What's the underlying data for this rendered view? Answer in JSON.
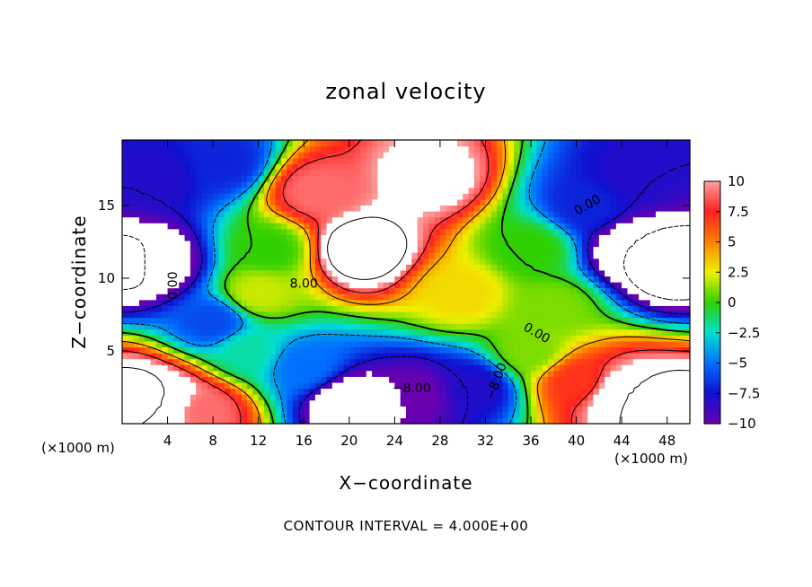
{
  "chart_data": {
    "type": "heatmap",
    "title": "zonal velocity",
    "xlabel": "X−coordinate",
    "ylabel": "Z−coordinate",
    "x_unit_label": "(×1000 m)",
    "footer": "CONTOUR INTERVAL = 4.000E+00",
    "xlim": [
      0,
      50
    ],
    "ylim": [
      0,
      19.5
    ],
    "x_ticks": [
      4,
      8,
      12,
      16,
      20,
      24,
      28,
      32,
      36,
      40,
      44,
      48
    ],
    "y_ticks": [
      5,
      10,
      15
    ],
    "colorbar": {
      "ticks": [
        10,
        7.5,
        5,
        2.5,
        0,
        -2.5,
        -5,
        -7.5,
        -10
      ],
      "tick_labels": [
        "10",
        "7.5",
        "5",
        "2.5",
        "0",
        "−2.5",
        "−5",
        "−7.5",
        "−10"
      ],
      "range": [
        -10,
        10
      ],
      "colors_high_to_low": [
        "#ffa0a0",
        "#ff2020",
        "#ff8000",
        "#f0f000",
        "#30d000",
        "#00e0d0",
        "#0070ff",
        "#1010d0",
        "#6a00b0"
      ]
    },
    "contour_interval": 4,
    "contour_labels": [
      "0.00",
      "8.00",
      "−8.00",
      "0.00",
      "−8.00",
      "0.00"
    ],
    "grid": false,
    "features": [
      {
        "x": 21,
        "z": 12,
        "u": 14
      },
      {
        "x": 27,
        "z": 17,
        "u": 11
      },
      {
        "x": 17,
        "z": 16,
        "u": 9
      },
      {
        "x": 12,
        "z": 9,
        "u": 2
      },
      {
        "x": 30,
        "z": 9,
        "u": 3
      },
      {
        "x": 36,
        "z": 12,
        "u": 0
      },
      {
        "x": 3,
        "z": 17,
        "u": -8
      },
      {
        "x": 9,
        "z": 18,
        "u": -7
      },
      {
        "x": 1,
        "z": 11,
        "u": -13
      },
      {
        "x": 3,
        "z": 11,
        "u": -11
      },
      {
        "x": 8,
        "z": 7,
        "u": -6
      },
      {
        "x": 45,
        "z": 17,
        "u": -8
      },
      {
        "x": 48,
        "z": 11,
        "u": -14
      },
      {
        "x": 45,
        "z": 12,
        "u": -12
      },
      {
        "x": 41,
        "z": 15,
        "u": -7
      },
      {
        "x": 20,
        "z": 1.5,
        "u": -12
      },
      {
        "x": 26,
        "z": 2,
        "u": -10
      },
      {
        "x": 31,
        "z": 2.5,
        "u": -8
      },
      {
        "x": 16,
        "z": 4,
        "u": -5
      },
      {
        "x": 11,
        "z": 5,
        "u": -2
      },
      {
        "x": 1,
        "z": 2,
        "u": 13
      },
      {
        "x": 4,
        "z": 1.5,
        "u": 12
      },
      {
        "x": 7,
        "z": 1,
        "u": 9
      },
      {
        "x": 44,
        "z": 2,
        "u": 12
      },
      {
        "x": 48,
        "z": 1,
        "u": 14
      },
      {
        "x": 40,
        "z": 3,
        "u": 7
      },
      {
        "x": 36,
        "z": 5,
        "u": 1
      },
      {
        "x": 13,
        "z": 12,
        "u": 0
      },
      {
        "x": 38,
        "z": 8,
        "u": 1
      }
    ]
  }
}
